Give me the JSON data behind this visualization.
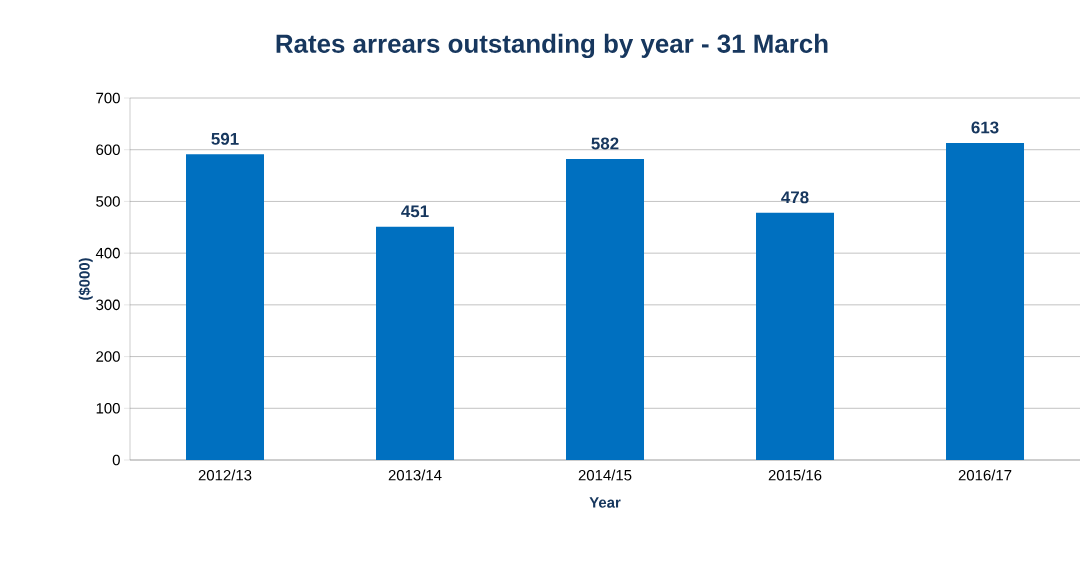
{
  "chart_data": {
    "type": "bar",
    "title": "Rates arrears outstanding by year - 31 March",
    "xlabel": "Year",
    "ylabel": "($000)",
    "categories": [
      "2012/13",
      "2013/14",
      "2014/15",
      "2015/16",
      "2016/17"
    ],
    "values": [
      591,
      451,
      582,
      478,
      613
    ],
    "color": "#0070c0",
    "ylim": [
      0,
      700
    ],
    "yticks": [
      0,
      100,
      200,
      300,
      400,
      500,
      600,
      700
    ],
    "grid": "y",
    "data_labels": true
  }
}
